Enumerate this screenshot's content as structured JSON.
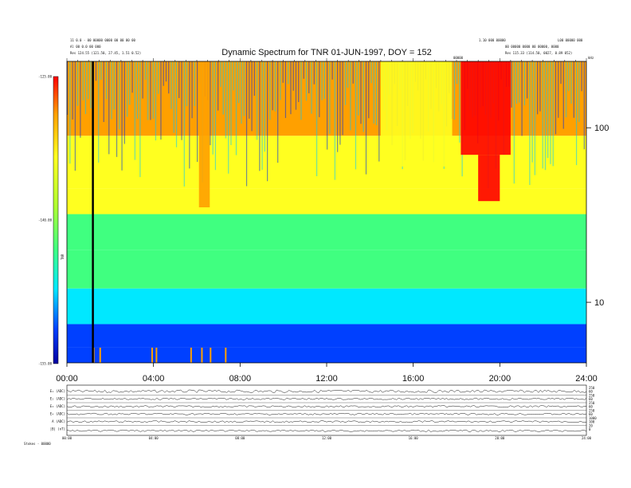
{
  "header": {
    "left_lines": [
      "11 0.0 - 00 00000 0000 00 00 00 00",
      "Al 00 0.0 00 000",
      "Res    124.55 (121.50, 27.45, 1.51 0.52)"
    ],
    "right_lines": [
      "1.10 000 00000",
      "00 00000 0000 00 00000, 0000",
      "Res    115.33 (114.50, 0027, 0.89 052)"
    ],
    "right_far": [
      "L00 00000 000"
    ]
  },
  "chart_data": {
    "type": "heatmap",
    "title": "Dynamic Spectrum for TNR 01-JUN-1997, DOY = 152",
    "xlabel": "",
    "x_ticks": [
      "00:00",
      "04:00",
      "08:00",
      "12:00",
      "16:00",
      "20:00",
      "24:00"
    ],
    "x_range_hours": [
      0,
      24
    ],
    "y_right_ticks": [
      "100",
      "10"
    ],
    "y_right_log_range": [
      4.5,
      240
    ],
    "y_right_unit": "kHz",
    "colorbar": {
      "ticks": [
        "-125.00",
        "-140.00",
        "-155.00"
      ],
      "range": [
        -155,
        -125
      ],
      "label": "TNR"
    },
    "colorscale": [
      "#0000a0",
      "#0040ff",
      "#00e8ff",
      "#40ff80",
      "#b0ff30",
      "#ffff20",
      "#ffa000",
      "#ff0000"
    ],
    "top_marker": "00000",
    "marker_line_hour": 1.2,
    "bands_db": [
      {
        "f_low": 4.5,
        "f_high": 5.5,
        "level": -150,
        "bursts": [
          1.2,
          1.5,
          3.9,
          4.1,
          5.7,
          6.2,
          6.6,
          7.3
        ]
      },
      {
        "f_low": 5.5,
        "f_high": 7.5,
        "level": -148
      },
      {
        "f_low": 7.5,
        "f_high": 12,
        "level": -146
      },
      {
        "f_low": 12,
        "f_high": 20,
        "level": -143
      },
      {
        "f_low": 20,
        "f_high": 32,
        "level": -141
      },
      {
        "f_low": 32,
        "f_high": 45,
        "level": -136
      },
      {
        "f_low": 45,
        "f_high": 90,
        "level": -133
      },
      {
        "f_low": 90,
        "f_high": 240,
        "level": -130
      }
    ],
    "storm_segments": [
      {
        "h_start": 6.1,
        "h_end": 6.6,
        "f_low": 35,
        "f_high": 240,
        "level": -132
      },
      {
        "h_start": 14.5,
        "h_end": 17.8,
        "f_low": 60,
        "f_high": 240,
        "level": -133
      },
      {
        "h_start": 18.2,
        "h_end": 20.5,
        "f_low": 70,
        "f_high": 240,
        "level": -125
      },
      {
        "h_start": 19.0,
        "h_end": 20.0,
        "f_low": 38,
        "f_high": 70,
        "level": -128
      }
    ]
  },
  "panel_rows": [
    {
      "label": "E₁ (ADC)",
      "ticks": [
        "250",
        "60"
      ]
    },
    {
      "label": "E₂ (ADC)",
      "ticks": [
        "250",
        "60"
      ]
    },
    {
      "label": "E₃ (ADC)",
      "ticks": [
        "250",
        "60"
      ]
    },
    {
      "label": "E₄ (ADC)",
      "ticks": [
        "250",
        "60"
      ]
    },
    {
      "label": "A (ADC)",
      "ticks": [
        "1000",
        "100"
      ]
    },
    {
      "label": "|B| (nT)",
      "ticks": [
        "20",
        "0"
      ]
    }
  ],
  "panel_x_ticks": [
    "00:00",
    "04:00",
    "08:00",
    "12:00",
    "16:00",
    "20:00",
    "24:00"
  ],
  "footer_label": "Stokes - 00000"
}
